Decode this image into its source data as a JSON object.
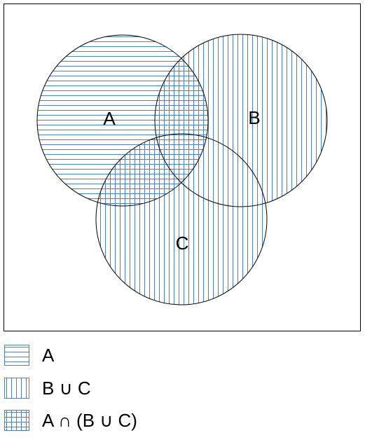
{
  "diagram": {
    "sets": [
      {
        "id": "A",
        "label": "A"
      },
      {
        "id": "B",
        "label": "B"
      },
      {
        "id": "C",
        "label": "C"
      }
    ],
    "colors": {
      "hatch": "#4f81bd",
      "outline": "#000000",
      "background": "#ffffff"
    }
  },
  "legend": [
    {
      "pattern": "horizontal-lines",
      "label": "A"
    },
    {
      "pattern": "vertical-lines",
      "label": "B ∪ C"
    },
    {
      "pattern": "grid-lines",
      "label": "A ∩ (B ∪ C)"
    }
  ]
}
